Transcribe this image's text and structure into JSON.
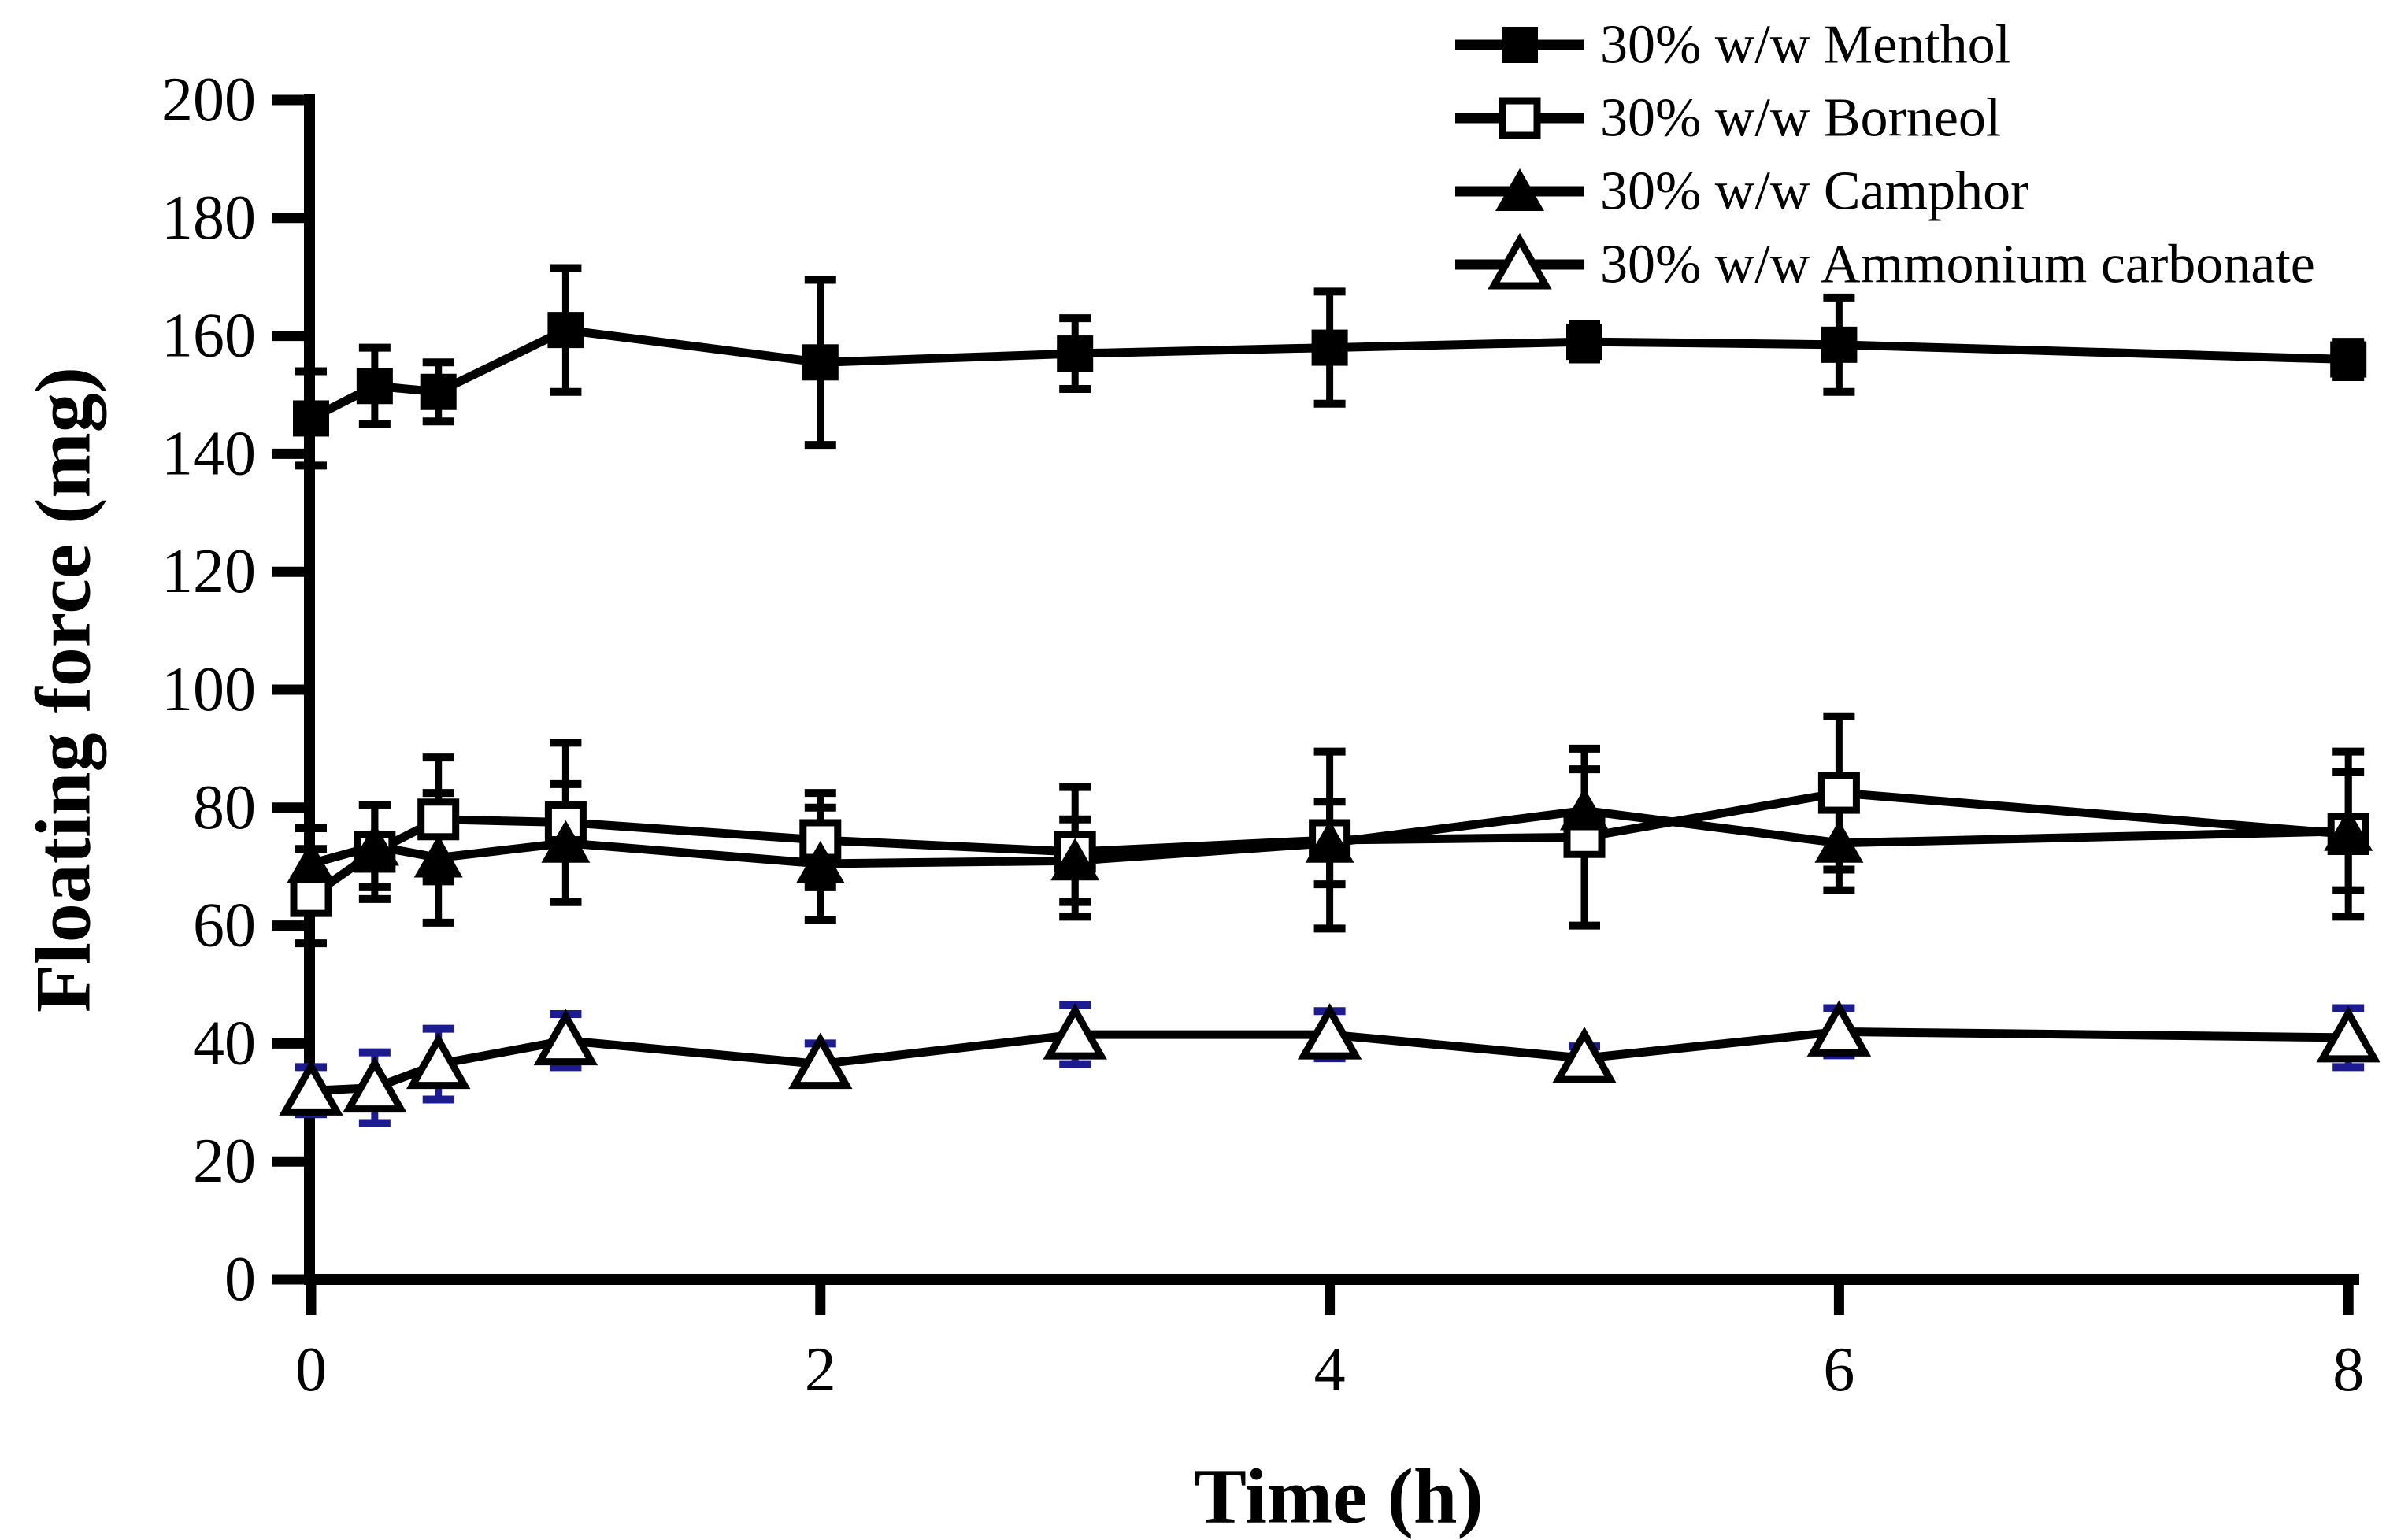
{
  "figure": {
    "background": "#ffffff"
  },
  "chart_data": {
    "type": "line",
    "title": "",
    "xlabel": "Time (h)",
    "ylabel": "Floating force (mg)",
    "xlim": [
      0,
      8
    ],
    "ylim": [
      0,
      200
    ],
    "xticks": [
      0,
      2,
      4,
      6,
      8
    ],
    "yticks": [
      0,
      20,
      40,
      60,
      80,
      100,
      120,
      140,
      160,
      180,
      200
    ],
    "grid": false,
    "legend_position": "top-right",
    "x": [
      0,
      0.25,
      0.5,
      1,
      2,
      3,
      4,
      5,
      6,
      8
    ],
    "series": [
      {
        "name": "30% w/w Menthol",
        "marker": "filled-square",
        "line_color": "#000000",
        "error_color": "#000000",
        "values": [
          146,
          151.5,
          150.5,
          161,
          155.5,
          157,
          158,
          159,
          158.5,
          156
        ],
        "errors": [
          8,
          6.5,
          5,
          10.5,
          14,
          6,
          9.5,
          3,
          8,
          3
        ]
      },
      {
        "name": "30% w/w Borneol",
        "marker": "open-square",
        "line_color": "#000000",
        "error_color": "#000000",
        "values": [
          65,
          72.5,
          78,
          77.5,
          74.5,
          72.5,
          74.5,
          75,
          82.5,
          75.5
        ],
        "errors": [
          8,
          8,
          10.5,
          13.5,
          8,
          11,
          15,
          15,
          13,
          14
        ]
      },
      {
        "name": "30% w/w Camphor",
        "marker": "filled-triangle",
        "line_color": "#000000",
        "error_color": "#000000",
        "values": [
          70.5,
          73.5,
          71.5,
          74,
          70.5,
          71,
          74,
          79.5,
          74,
          76
        ],
        "errors": [
          6,
          7,
          11,
          10,
          9.5,
          7,
          7,
          7,
          8,
          10
        ]
      },
      {
        "name": "30% w/w Ammonium carbonate",
        "marker": "open-triangle",
        "line_color": "#000000",
        "error_color": "#1c1c90",
        "values": [
          32,
          32.5,
          36.5,
          40.5,
          36.5,
          41.5,
          41.5,
          37.5,
          42,
          41
        ],
        "errors": [
          4,
          6,
          6,
          4.5,
          3.5,
          5,
          4,
          2,
          4,
          5
        ]
      }
    ]
  }
}
